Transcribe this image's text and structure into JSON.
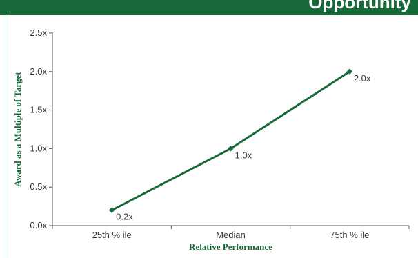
{
  "header": {
    "title": "Opportunity"
  },
  "colors": {
    "brand_green": "#17693a",
    "line": "#17693a",
    "axis": "#555555",
    "text": "#333333"
  },
  "chart_data": {
    "type": "line",
    "title": "",
    "xlabel": "Relative Performance",
    "ylabel": "Award as a Multiple of Target",
    "categories": [
      "25th % ile",
      "Median",
      "75th % ile"
    ],
    "series": [
      {
        "values": [
          0.2,
          1.0,
          2.0
        ],
        "data_labels": [
          "0.2x",
          "1.0x",
          "2.0x"
        ]
      }
    ],
    "ylim": [
      0,
      2.5
    ],
    "yticks": [
      0,
      0.5,
      1.0,
      1.5,
      2.0,
      2.5
    ],
    "ytick_labels": [
      "0.0x",
      "0.5x",
      "1.0x",
      "1.5x",
      "2.0x",
      "2.5x"
    ],
    "grid": false,
    "legend": "none"
  }
}
